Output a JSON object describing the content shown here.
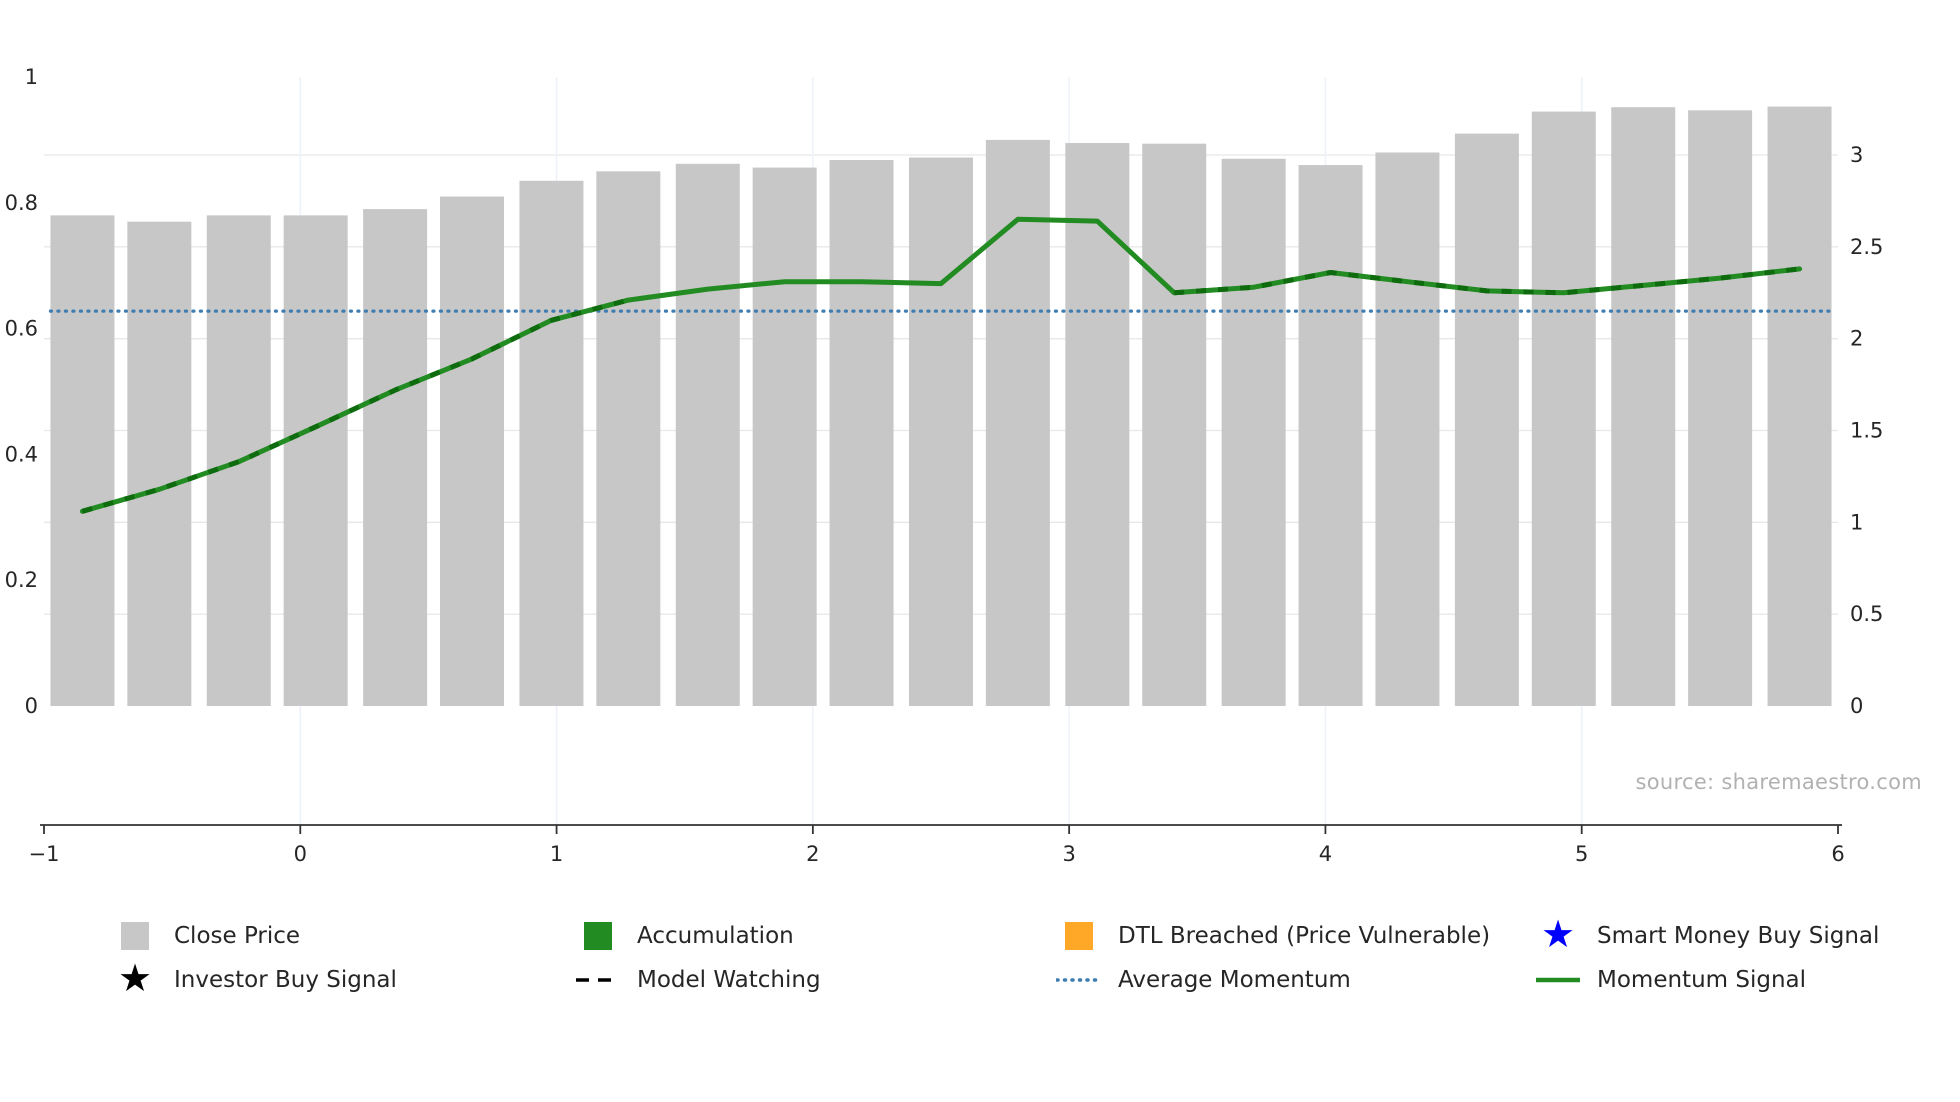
{
  "source": "source: sharemaestro.com",
  "legend": {
    "items": [
      {
        "id": "close-price",
        "label": "Close Price",
        "marker": "square",
        "color": "#c7c7c7"
      },
      {
        "id": "accumulation",
        "label": "Accumulation",
        "marker": "square",
        "color": "#228b22"
      },
      {
        "id": "dtl-breached",
        "label": "DTL Breached (Price Vulnerable)",
        "marker": "square",
        "color": "#ffa726"
      },
      {
        "id": "smart-money-buy-signal",
        "label": "Smart Money Buy Signal",
        "marker": "star",
        "color": "#0000ff"
      },
      {
        "id": "investor-buy-signal",
        "label": "Investor Buy Signal",
        "marker": "star",
        "color": "#000000"
      },
      {
        "id": "model-watching",
        "label": "Model Watching",
        "marker": "dashed-line",
        "color": "#000000"
      },
      {
        "id": "average-momentum",
        "label": "Average Momentum",
        "marker": "dotted-line",
        "color": "#3e7cb1"
      },
      {
        "id": "momentum-signal",
        "label": "Momentum Signal",
        "marker": "solid-line",
        "color": "#228b22"
      }
    ]
  },
  "chart_data": {
    "type": "bar+line",
    "title": "",
    "x": [
      -0.85,
      -0.55,
      -0.24,
      0.06,
      0.37,
      0.67,
      0.98,
      1.28,
      1.59,
      1.89,
      2.19,
      2.5,
      2.8,
      3.11,
      3.41,
      3.72,
      4.02,
      4.32,
      4.63,
      4.93,
      5.24,
      5.54,
      5.85
    ],
    "series": [
      {
        "name": "Close Price",
        "type": "bar",
        "axis": "left",
        "color": "#c7c7c7",
        "values": [
          0.78,
          0.77,
          0.78,
          0.78,
          0.79,
          0.81,
          0.835,
          0.85,
          0.862,
          0.856,
          0.868,
          0.872,
          0.9,
          0.895,
          0.894,
          0.87,
          0.86,
          0.88,
          0.91,
          0.945,
          0.952,
          0.947,
          0.953
        ]
      },
      {
        "name": "Momentum Signal",
        "type": "line",
        "axis": "right",
        "color": "#228b22",
        "values": [
          1.06,
          1.18,
          1.33,
          1.52,
          1.72,
          1.89,
          2.1,
          2.21,
          2.27,
          2.31,
          2.31,
          2.3,
          2.65,
          2.64,
          2.25,
          2.28,
          2.36,
          2.31,
          2.26,
          2.25,
          2.29,
          2.33,
          2.38
        ]
      },
      {
        "name": "Average Momentum",
        "type": "hline",
        "axis": "right",
        "style": "dotted",
        "color": "#3e7cb1",
        "value": 2.15
      },
      {
        "name": "Accumulation",
        "type": "line-overlay",
        "axis": "right",
        "style": "dashed",
        "color": "#0e6b0e",
        "segments": [
          [
            0,
            7
          ],
          [
            14,
            22
          ]
        ]
      }
    ],
    "x_axis": {
      "range": [
        -1,
        6
      ],
      "ticks": [
        -1,
        0,
        1,
        2,
        3,
        4,
        5,
        6
      ],
      "tick_labels": [
        "−1",
        "0",
        "1",
        "2",
        "3",
        "4",
        "5",
        "6"
      ]
    },
    "left_axis": {
      "range": [
        0,
        1
      ],
      "ticks": [
        0,
        0.2,
        0.4,
        0.6,
        0.8,
        1
      ],
      "tick_labels": [
        "0",
        "0.2",
        "0.4",
        "0.6",
        "0.8",
        "1"
      ]
    },
    "right_axis": {
      "range": [
        0,
        3
      ],
      "ticks": [
        0,
        0.5,
        1,
        1.5,
        2,
        2.5,
        3
      ],
      "tick_labels": [
        "0",
        "0.5",
        "1",
        "1.5",
        "2",
        "2.5",
        "3"
      ]
    },
    "grid": {
      "horizontal": true,
      "vertical_below_plot": true
    },
    "legend_position": "bottom"
  }
}
